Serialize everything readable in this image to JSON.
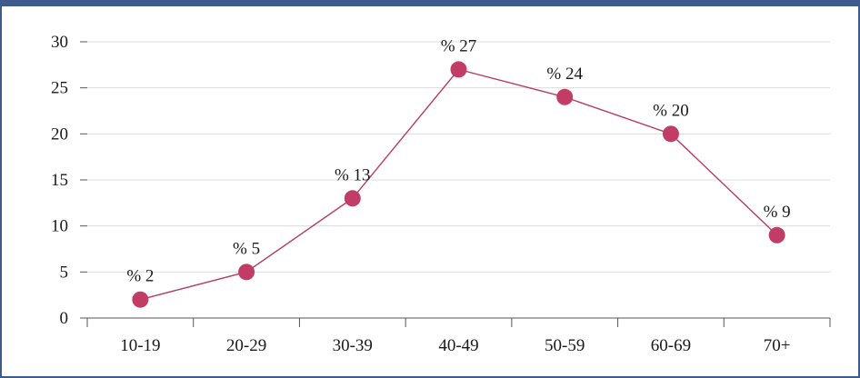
{
  "chart_data": {
    "type": "line",
    "categories": [
      "10-19",
      "20-29",
      "30-39",
      "40-49",
      "50-59",
      "60-69",
      "70+"
    ],
    "values": [
      2,
      5,
      13,
      27,
      24,
      20,
      9
    ],
    "data_labels": [
      "% 2",
      "% 5",
      "% 13",
      "% 27",
      "% 24",
      "% 20",
      "% 9"
    ],
    "title": "",
    "xlabel": "",
    "ylabel": "",
    "ylim": [
      0,
      30
    ],
    "yticks": [
      0,
      5,
      10,
      15,
      20,
      25,
      30
    ],
    "grid": true,
    "legend": "none",
    "colors": {
      "line": "#b83a60",
      "marker": "#c23d65",
      "frame": "#3f5a8c",
      "grid": "#dcdcdc"
    }
  }
}
